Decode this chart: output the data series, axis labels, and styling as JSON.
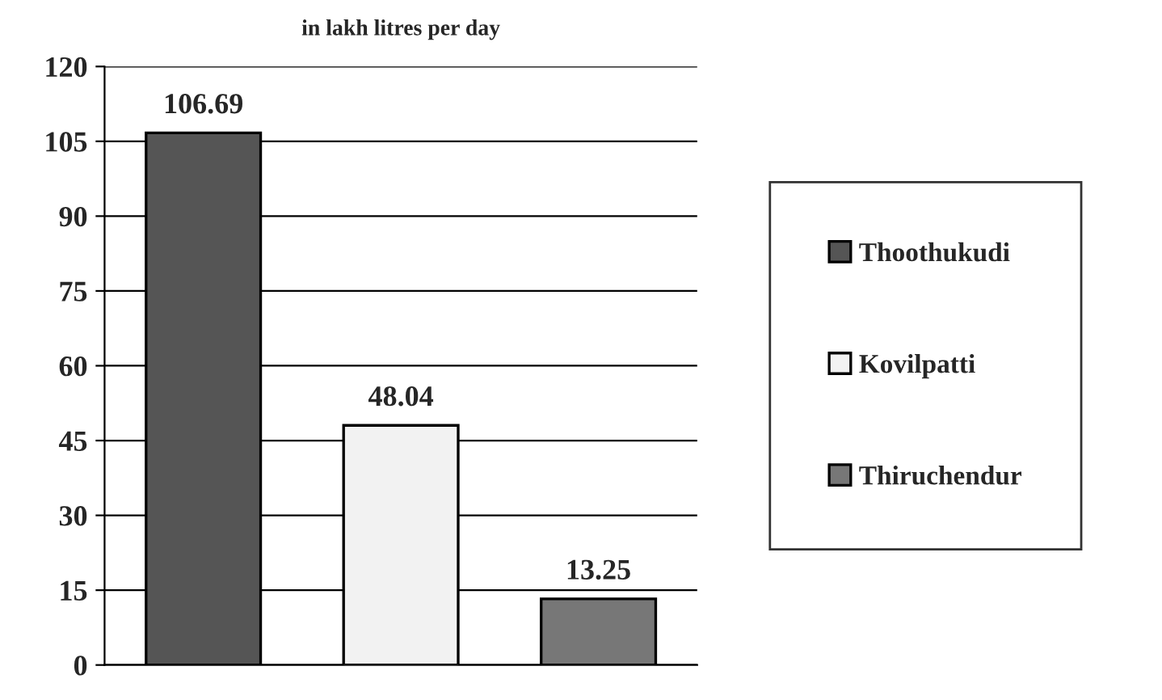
{
  "chart_data": {
    "type": "bar",
    "title": "in lakh litres per day",
    "categories": [
      null,
      null,
      null
    ],
    "series": [
      {
        "name": "Thoothukudi",
        "color": "#555555",
        "values": [
          106.69,
          null,
          null
        ]
      },
      {
        "name": "Kovilpatti",
        "color": "#f2f2f2",
        "values": [
          null,
          48.04,
          null
        ]
      },
      {
        "name": "Thiruchendur",
        "color": "#777777",
        "values": [
          null,
          null,
          13.25
        ]
      }
    ],
    "ylim": [
      0,
      120
    ],
    "yticks": [
      0,
      15,
      30,
      45,
      60,
      75,
      90,
      105,
      120
    ],
    "grid": "y",
    "legend": "right",
    "data_labels": true
  }
}
